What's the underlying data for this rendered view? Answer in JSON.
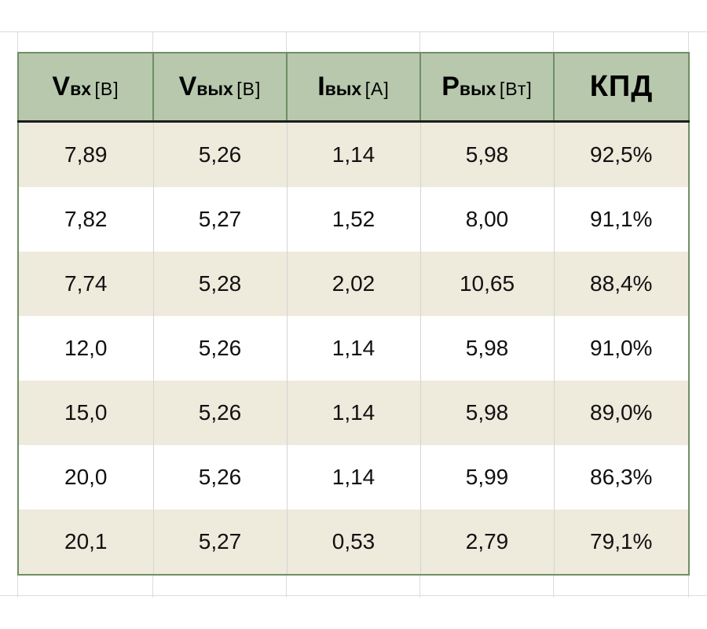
{
  "table": {
    "headers": [
      {
        "symbol": "V",
        "sub": "вх",
        "unit": "[В]"
      },
      {
        "symbol": "V",
        "sub": "вых",
        "unit": "[В]"
      },
      {
        "symbol": "I",
        "sub": "вых",
        "unit": "[А]"
      },
      {
        "symbol": "P",
        "sub": "вых",
        "unit": "[Вт]"
      },
      {
        "symbol": "КПД",
        "sub": "",
        "unit": ""
      }
    ],
    "rows": [
      [
        "7,89",
        "5,26",
        "1,14",
        "5,98",
        "92,5%"
      ],
      [
        "7,82",
        "5,27",
        "1,52",
        "8,00",
        "91,1%"
      ],
      [
        "7,74",
        "5,28",
        "2,02",
        "10,65",
        "88,4%"
      ],
      [
        "12,0",
        "5,26",
        "1,14",
        "5,98",
        "91,0%"
      ],
      [
        "15,0",
        "5,26",
        "1,14",
        "5,98",
        "89,0%"
      ],
      [
        "20,0",
        "5,26",
        "1,14",
        "5,99",
        "86,3%"
      ],
      [
        "20,1",
        "5,27",
        "0,53",
        "2,79",
        "79,1%"
      ]
    ]
  },
  "colors": {
    "header_bg": "#b7c8ad",
    "stripe_bg": "#eeeadc",
    "border": "#6f8f63"
  }
}
